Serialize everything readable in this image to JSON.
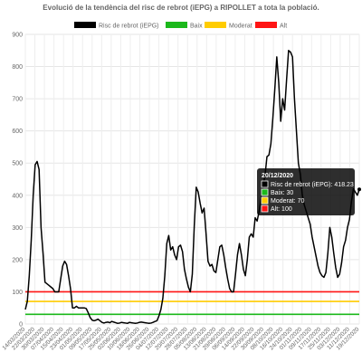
{
  "chart_data": {
    "type": "line",
    "title": "Evolució de la tendència del risc de rebrot (iEPG) a RIPOLLET a tota la població.",
    "ylim": [
      0,
      900
    ],
    "yticks": [
      0,
      100,
      200,
      300,
      400,
      500,
      600,
      700,
      800,
      900
    ],
    "grid": true,
    "legend_position": "top",
    "x_tick_labels": [
      "14/03/2020",
      "22/03/2020",
      "30/03/2020",
      "07/04/2020",
      "15/04/2020",
      "23/04/2020",
      "01/05/2020",
      "09/05/2020",
      "17/05/2020",
      "25/05/2020",
      "02/06/2020",
      "10/06/2020",
      "18/06/2020",
      "26/06/2020",
      "04/07/2020",
      "12/07/2020",
      "20/07/2020",
      "28/07/2020",
      "05/08/2020",
      "13/08/2020",
      "21/08/2020",
      "29/08/2020",
      "06/09/2020",
      "14/09/2020",
      "22/09/2020",
      "30/09/2020",
      "08/10/2020",
      "16/10/2020",
      "24/10/2020",
      "01/11/2020",
      "09/11/2020",
      "17/11/2020",
      "25/11/2020",
      "03/12/2020",
      "11/12/2020",
      "19/12/2020"
    ],
    "series": [
      {
        "name": "Risc de rebrot (iEPG)",
        "color": "#000000",
        "values": [
          45,
          70,
          150,
          260,
          400,
          495,
          505,
          480,
          300,
          220,
          130,
          125,
          120,
          115,
          110,
          100,
          100,
          100,
          140,
          180,
          195,
          185,
          150,
          110,
          50,
          50,
          55,
          50,
          50,
          50,
          50,
          48,
          35,
          20,
          12,
          10,
          12,
          15,
          10,
          5,
          3,
          5,
          6,
          4,
          8,
          6,
          4,
          2,
          3,
          5,
          4,
          3,
          2,
          5,
          4,
          3,
          2,
          3,
          5,
          6,
          5,
          4,
          3,
          2,
          3,
          5,
          8,
          10,
          25,
          45,
          80,
          150,
          250,
          275,
          230,
          240,
          215,
          200,
          240,
          245,
          225,
          170,
          140,
          115,
          100,
          155,
          305,
          425,
          410,
          375,
          345,
          360,
          280,
          195,
          180,
          185,
          165,
          160,
          200,
          240,
          245,
          215,
          175,
          140,
          110,
          100,
          100,
          155,
          215,
          250,
          215,
          170,
          150,
          200,
          270,
          280,
          270,
          330,
          320,
          350,
          390,
          430,
          460,
          520,
          525,
          560,
          640,
          730,
          830,
          750,
          630,
          700,
          665,
          760,
          850,
          845,
          830,
          700,
          600,
          500,
          465,
          400,
          370,
          350,
          330,
          310,
          270,
          240,
          210,
          180,
          160,
          150,
          145,
          160,
          220,
          300,
          270,
          220,
          175,
          145,
          155,
          190,
          240,
          260,
          300,
          325,
          380,
          420,
          410,
          400,
          418.23
        ]
      },
      {
        "name": "Baix",
        "color": "#1bb81b",
        "constant": 30
      },
      {
        "name": "Moderat",
        "color": "#ffcc00",
        "constant": 70
      },
      {
        "name": "Alt",
        "color": "#ff1414",
        "constant": 100
      }
    ],
    "tooltip": {
      "title": "20/12/2020",
      "rows": [
        {
          "label": "Risc de rebrot (iEPG): 418.23",
          "color": "#000000"
        },
        {
          "label": "Baix: 30",
          "color": "#1bb81b"
        },
        {
          "label": "Moderat: 70",
          "color": "#ffcc00"
        },
        {
          "label": "Alt: 100",
          "color": "#ff1414"
        }
      ]
    }
  }
}
